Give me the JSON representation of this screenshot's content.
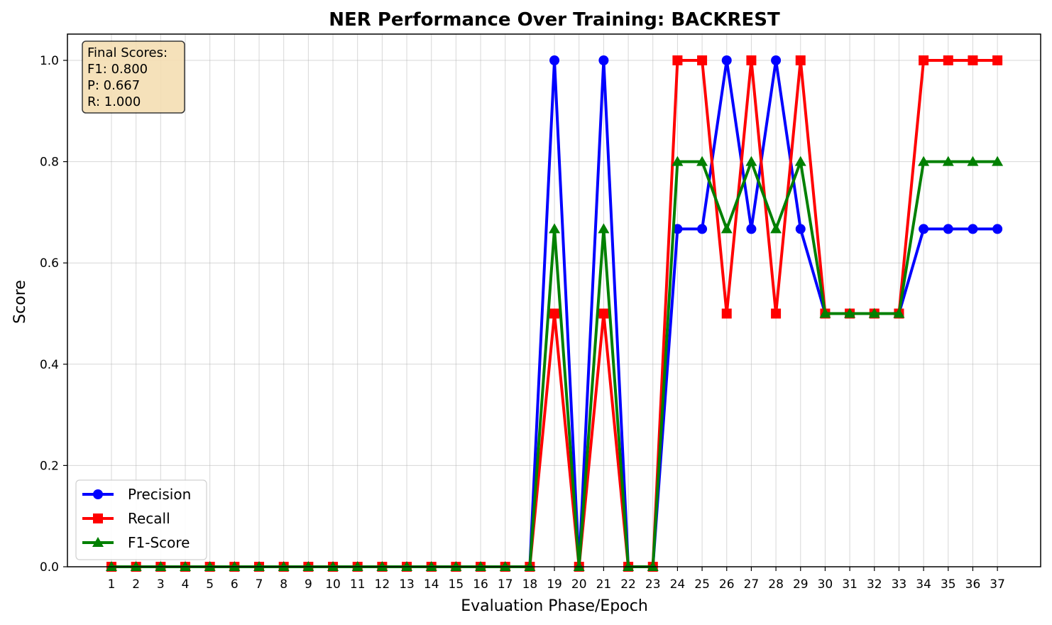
{
  "chart_data": {
    "type": "line",
    "title": "NER Performance Over Training: BACKREST",
    "xlabel": "Evaluation Phase/Epoch",
    "ylabel": "Score",
    "x": [
      1,
      2,
      3,
      4,
      5,
      6,
      7,
      8,
      9,
      10,
      11,
      12,
      13,
      14,
      15,
      16,
      17,
      18,
      19,
      20,
      21,
      22,
      23,
      24,
      25,
      26,
      27,
      28,
      29,
      30,
      31,
      32,
      33,
      34,
      35,
      36,
      37
    ],
    "ylim": [
      0,
      1.05
    ],
    "yticks": [
      0.0,
      0.2,
      0.4,
      0.6,
      0.8,
      1.0
    ],
    "grid": true,
    "legend_position": "lower-left",
    "series": [
      {
        "name": "Precision",
        "color": "#0000ff",
        "marker": "circle",
        "values": [
          0,
          0,
          0,
          0,
          0,
          0,
          0,
          0,
          0,
          0,
          0,
          0,
          0,
          0,
          0,
          0,
          0,
          0,
          1.0,
          0,
          1.0,
          0,
          0,
          0.667,
          0.667,
          1.0,
          0.667,
          1.0,
          0.667,
          0.5,
          0.5,
          0.5,
          0.5,
          0.667,
          0.667,
          0.667,
          0.667
        ]
      },
      {
        "name": "Recall",
        "color": "#ff0000",
        "marker": "square",
        "values": [
          0,
          0,
          0,
          0,
          0,
          0,
          0,
          0,
          0,
          0,
          0,
          0,
          0,
          0,
          0,
          0,
          0,
          0,
          0.5,
          0,
          0.5,
          0,
          0,
          1.0,
          1.0,
          0.5,
          1.0,
          0.5,
          1.0,
          0.5,
          0.5,
          0.5,
          0.5,
          1.0,
          1.0,
          1.0,
          1.0
        ]
      },
      {
        "name": "F1-Score",
        "color": "#008000",
        "marker": "triangle",
        "values": [
          0,
          0,
          0,
          0,
          0,
          0,
          0,
          0,
          0,
          0,
          0,
          0,
          0,
          0,
          0,
          0,
          0,
          0,
          0.667,
          0,
          0.667,
          0,
          0,
          0.8,
          0.8,
          0.667,
          0.8,
          0.667,
          0.8,
          0.5,
          0.5,
          0.5,
          0.5,
          0.8,
          0.8,
          0.8,
          0.8
        ]
      }
    ],
    "annotation": {
      "lines": [
        "Final Scores:",
        "F1: 0.800",
        "P: 0.667",
        "R: 1.000"
      ],
      "background": "#f5deb3"
    }
  }
}
